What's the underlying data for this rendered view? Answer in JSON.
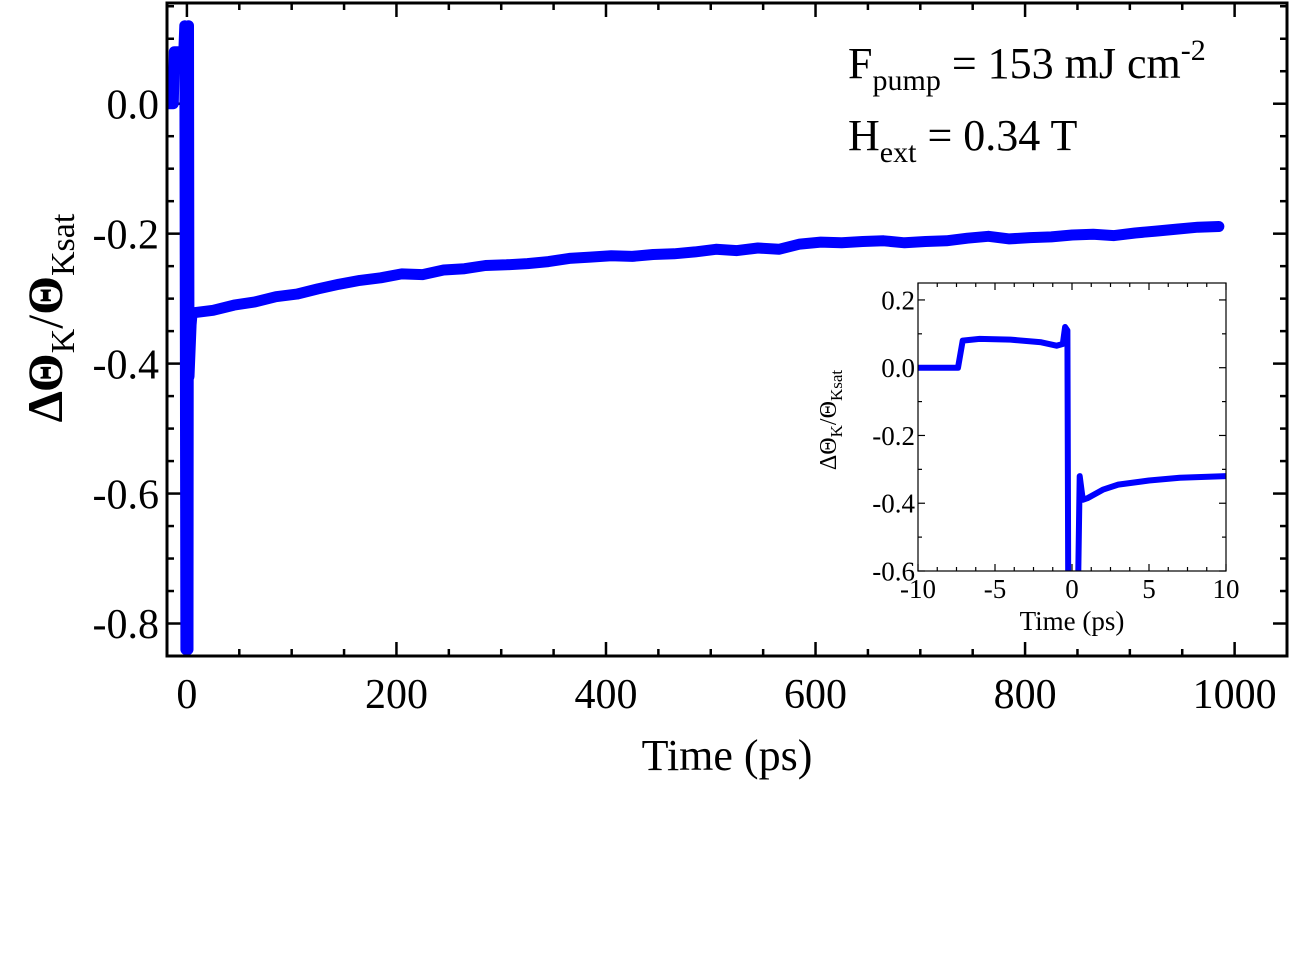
{
  "chart_data": [
    {
      "type": "line",
      "name": "main",
      "xlabel": "Time (ps)",
      "ylabel": {
        "delta": "Δ",
        "theta": "Θ",
        "sub_k": "K",
        "slash": "/",
        "sub_ksat": "Ksat"
      },
      "xlim": [
        -19,
        1050
      ],
      "ylim": [
        -0.85,
        0.155
      ],
      "xticks": [
        0,
        200,
        400,
        600,
        800,
        1000
      ],
      "xtick_labels": [
        "0",
        "200",
        "400",
        "600",
        "800",
        "1000"
      ],
      "x_minor_step": 50,
      "yticks": [
        0.0,
        -0.2,
        -0.4,
        -0.6,
        -0.8
      ],
      "ytick_labels": [
        "0.0",
        "-0.2",
        "-0.4",
        "-0.6",
        "-0.8"
      ],
      "y_minor_step": 0.05,
      "grid": false,
      "color": "#0000ff",
      "annotations": {
        "fluence": {
          "F": "F",
          "sub": "pump",
          "rest": " = 153 mJ cm",
          "sup": "-2"
        },
        "field": {
          "H": "H",
          "sub": "ext",
          "rest": " = 0.34 T"
        }
      },
      "series": [
        {
          "name": "ΔΘK/ΘKsat",
          "x": [
            -19,
            -13,
            -12,
            -3,
            -2,
            -1,
            1,
            1.5,
            2,
            4,
            5,
            25,
            45,
            65,
            85,
            105,
            125,
            145,
            165,
            185,
            205,
            225,
            245,
            265,
            285,
            305,
            325,
            345,
            365,
            385,
            405,
            425,
            445,
            465,
            485,
            505,
            525,
            545,
            565,
            585,
            605,
            625,
            645,
            665,
            685,
            705,
            725,
            745,
            765,
            785,
            805,
            825,
            845,
            865,
            885,
            905,
            925,
            945,
            965,
            985
          ],
          "y": [
            0,
            0,
            0.08,
            0.08,
            0.12,
            -0.84,
            -0.84,
            0.12,
            -0.42,
            -0.34,
            -0.322,
            -0.318,
            -0.31,
            -0.305,
            -0.297,
            -0.293,
            -0.285,
            -0.278,
            -0.272,
            -0.268,
            -0.262,
            -0.263,
            -0.256,
            -0.254,
            -0.249,
            -0.248,
            -0.246,
            -0.243,
            -0.238,
            -0.236,
            -0.234,
            -0.235,
            -0.232,
            -0.231,
            -0.228,
            -0.224,
            -0.226,
            -0.222,
            -0.224,
            -0.216,
            -0.213,
            -0.214,
            -0.212,
            -0.211,
            -0.214,
            -0.212,
            -0.211,
            -0.207,
            -0.204,
            -0.208,
            -0.206,
            -0.205,
            -0.202,
            -0.201,
            -0.203,
            -0.199,
            -0.196,
            -0.193,
            -0.19,
            -0.189
          ]
        }
      ]
    },
    {
      "type": "line",
      "name": "inset",
      "xlabel": "Time (ps)",
      "ylabel": {
        "delta": "Δ",
        "theta": "Θ",
        "sub_k": "K",
        "slash": "/",
        "sub_ksat": "Ksat"
      },
      "xlim": [
        -10,
        10
      ],
      "ylim": [
        -0.6,
        0.25
      ],
      "xticks": [
        -10,
        -5,
        0,
        5,
        10
      ],
      "xtick_labels": [
        "-10",
        "-5",
        "0",
        "5",
        "10"
      ],
      "x_minor_step": 1.25,
      "yticks": [
        0.2,
        0.0,
        -0.2,
        -0.4,
        -0.6
      ],
      "ytick_labels": [
        "0.2",
        "0.0",
        "-0.2",
        "-0.4",
        "-0.6"
      ],
      "y_minor_step": 0.1,
      "grid": false,
      "color": "#0000ff",
      "series": [
        {
          "name": "ΔΘK/ΘKsat",
          "x": [
            -10,
            -7.4,
            -7.1,
            -6,
            -4,
            -2,
            -1,
            -0.6,
            -0.45,
            -0.3,
            -0.25,
            -0.1,
            -0.05,
            0.35,
            0.4,
            0.5,
            0.7,
            1.0,
            2,
            3,
            5,
            7,
            10
          ],
          "y": [
            0,
            0,
            0.08,
            0.085,
            0.083,
            0.075,
            0.065,
            0.07,
            0.12,
            0.11,
            -0.62,
            -0.62,
            -0.62,
            -0.62,
            -0.62,
            -0.32,
            -0.39,
            -0.385,
            -0.36,
            -0.345,
            -0.333,
            -0.325,
            -0.32
          ]
        }
      ]
    }
  ]
}
